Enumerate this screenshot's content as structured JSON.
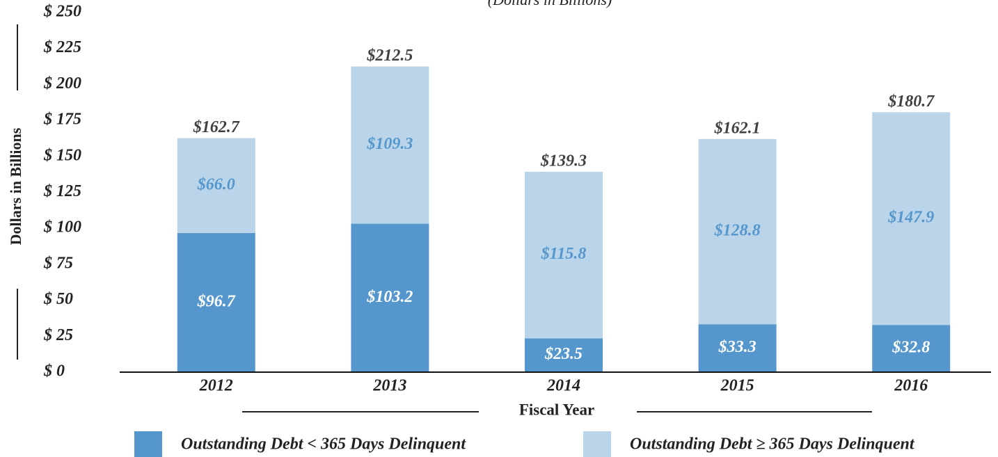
{
  "chart_data": {
    "type": "stacked_bar",
    "subtitle": "(Dollars in Billions)",
    "y_label": "Dollars in Billions",
    "x_label": "Fiscal Year",
    "categories": [
      "2012",
      "2013",
      "2014",
      "2015",
      "2016"
    ],
    "series": [
      {
        "name": "Outstanding Debt < 365 Days Delinquent",
        "color": "#5597cc",
        "values": [
          96.7,
          103.2,
          23.5,
          33.3,
          32.8
        ],
        "value_labels": [
          "$96.7",
          "$103.2",
          "$23.5",
          "$33.3",
          "$32.8"
        ]
      },
      {
        "name": "Outstanding Debt ≥ 365 Days Delinquent",
        "color": "#bad5ea",
        "values": [
          66.0,
          109.3,
          115.8,
          128.8,
          147.9
        ],
        "value_labels": [
          "$66.0",
          "$109.3",
          "$115.8",
          "$128.8",
          "$147.9"
        ]
      }
    ],
    "totals": [
      162.7,
      212.5,
      139.3,
      162.1,
      180.7
    ],
    "total_labels": [
      "$162.7",
      "$212.5",
      "$139.3",
      "$162.1",
      "$180.7"
    ],
    "ylim": [
      0,
      250
    ],
    "yticks": [
      {
        "value": 0,
        "label": "$ 0"
      },
      {
        "value": 25,
        "label": "$ 25"
      },
      {
        "value": 50,
        "label": "$ 50"
      },
      {
        "value": 75,
        "label": "$ 75"
      },
      {
        "value": 100,
        "label": "$ 100"
      },
      {
        "value": 125,
        "label": "$ 125"
      },
      {
        "value": 150,
        "label": "$ 150"
      },
      {
        "value": 175,
        "label": "$ 175"
      },
      {
        "value": 200,
        "label": "$ 200"
      },
      {
        "value": 225,
        "label": "$ 225"
      },
      {
        "value": 250,
        "label": "$ 250"
      }
    ]
  }
}
